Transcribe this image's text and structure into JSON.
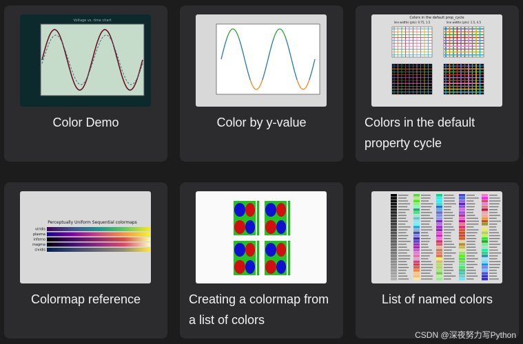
{
  "cards": [
    {
      "title": [
        "Color Demo"
      ],
      "thumbnail": {
        "title": "Voltage vs. time chart"
      }
    },
    {
      "title": [
        "Color by y-value"
      ]
    },
    {
      "title": [
        "Colors in the default",
        "property cycle"
      ],
      "thumbnail": {
        "title": "Colors in the default prop_cycle",
        "subtitles": [
          "line widths (pts): 0.75, 1.5",
          "line widths (pts): 1.5, 4.5"
        ]
      }
    },
    {
      "title": [
        "Colormap reference"
      ],
      "thumbnail": {
        "title": "Perceptually Uniform Sequential colormaps",
        "colormaps": [
          "viridis",
          "plasma",
          "inferno",
          "magma",
          "cividis"
        ]
      }
    },
    {
      "title": [
        "Creating a colormap from",
        "a list of colors"
      ]
    },
    {
      "title": [
        "List of named colors"
      ]
    }
  ],
  "watermark": "CSDN @深夜努力写Python"
}
